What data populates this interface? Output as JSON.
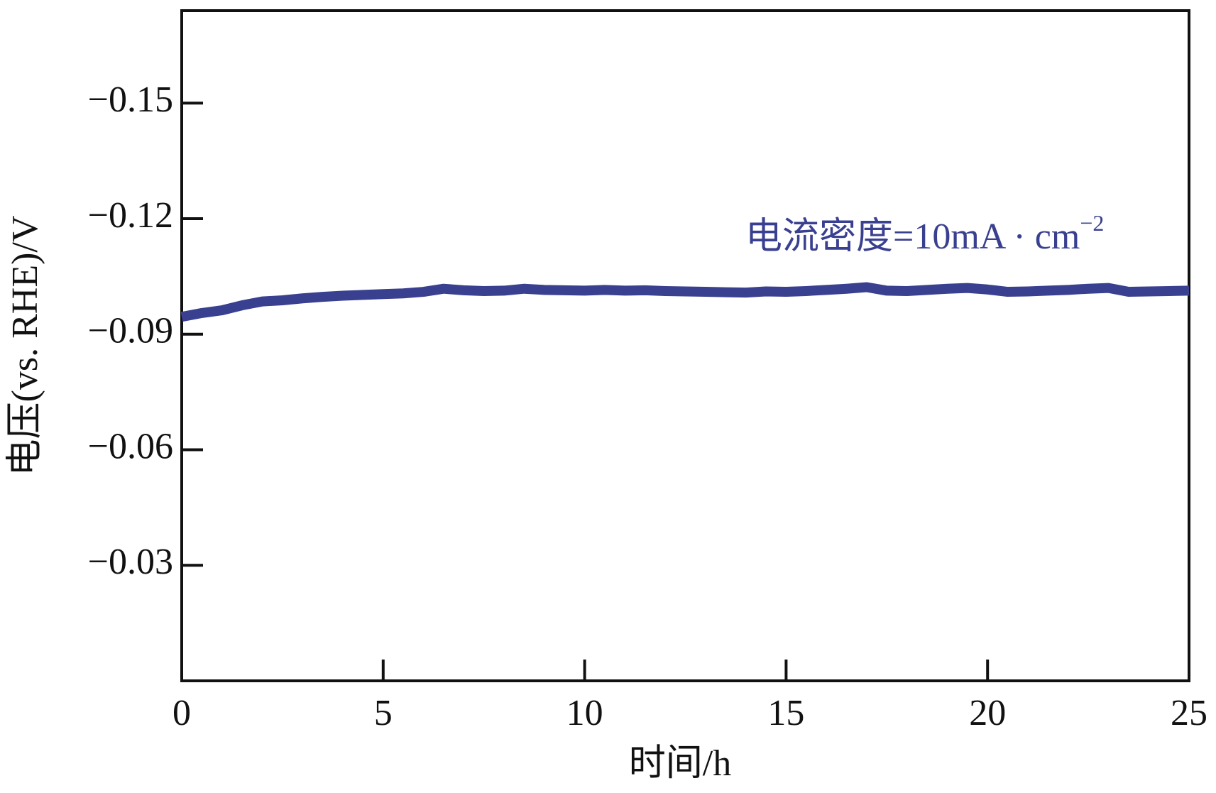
{
  "chart_data": {
    "type": "line",
    "x_label": "时间/h",
    "y_label": "电压(vs. RHE)/V",
    "annotation": {
      "text": "电流密度=10mA · cm",
      "superscript": "−2"
    },
    "x": [
      0,
      0.5,
      1,
      1.5,
      2,
      2.5,
      3,
      3.5,
      4,
      4.5,
      5,
      5.5,
      6,
      6.5,
      7,
      7.5,
      8,
      8.5,
      9,
      9.5,
      10,
      10.5,
      11,
      11.5,
      12,
      12.5,
      13,
      13.5,
      14,
      14.5,
      15,
      15.5,
      16,
      16.5,
      17,
      17.5,
      18,
      18.5,
      19,
      19.5,
      20,
      20.5,
      21,
      21.5,
      22,
      22.5,
      23,
      23.5,
      24,
      24.5,
      25
    ],
    "series": [
      {
        "color": "#3a4090",
        "values": [
          -0.0945,
          -0.0955,
          -0.0962,
          -0.0975,
          -0.0985,
          -0.0988,
          -0.0993,
          -0.0997,
          -0.1,
          -0.1002,
          -0.1004,
          -0.1006,
          -0.101,
          -0.1018,
          -0.1014,
          -0.1012,
          -0.1013,
          -0.1018,
          -0.1015,
          -0.1014,
          -0.1013,
          -0.1015,
          -0.1013,
          -0.1014,
          -0.1012,
          -0.1011,
          -0.101,
          -0.1009,
          -0.1008,
          -0.1011,
          -0.101,
          -0.1012,
          -0.1015,
          -0.1018,
          -0.1022,
          -0.1013,
          -0.1012,
          -0.1015,
          -0.1018,
          -0.102,
          -0.1016,
          -0.101,
          -0.1011,
          -0.1013,
          -0.1015,
          -0.1018,
          -0.102,
          -0.101,
          -0.1011,
          -0.1012,
          -0.1013
        ]
      }
    ],
    "xlim": [
      0,
      25
    ],
    "xticks": [
      0,
      5,
      10,
      15,
      20,
      25
    ],
    "ylim": [
      0,
      -0.174
    ],
    "yticks": [
      {
        "value": -0.15,
        "label": "−0.15"
      },
      {
        "value": -0.12,
        "label": "−0.12"
      },
      {
        "value": -0.09,
        "label": "−0.09"
      },
      {
        "value": -0.06,
        "label": "−0.06"
      },
      {
        "value": -0.03,
        "label": "−0.03"
      }
    ]
  }
}
